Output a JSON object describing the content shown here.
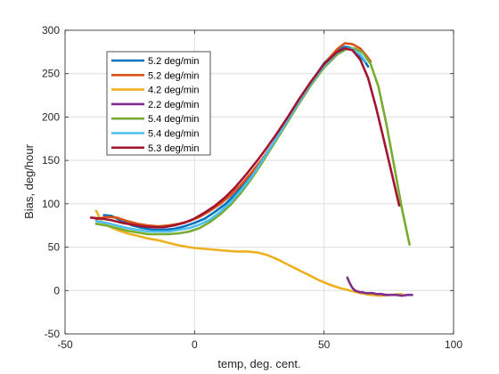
{
  "chart_data": {
    "type": "line",
    "xlabel": "temp, deg. cent.",
    "ylabel": "Bias, deg/hour",
    "xlim": [
      -50,
      100
    ],
    "ylim": [
      -50,
      300
    ],
    "xticks": [
      -50,
      0,
      50,
      100
    ],
    "yticks": [
      -50,
      0,
      50,
      100,
      150,
      200,
      250,
      300
    ],
    "grid": true,
    "legend_position": "top-left",
    "series": [
      {
        "name": "5.2 deg/min",
        "color": "#0072BD",
        "x": [
          -35,
          -32,
          -28,
          -24,
          -20,
          -16,
          -12,
          -8,
          -4,
          0,
          4,
          8,
          12,
          16,
          20,
          25,
          30,
          35,
          40,
          45,
          50,
          55,
          58,
          60,
          62,
          64,
          66,
          67
        ],
        "y": [
          87,
          86,
          80,
          75,
          72,
          70,
          70,
          71,
          74,
          78,
          83,
          91,
          100,
          112,
          126,
          145,
          167,
          191,
          216,
          240,
          262,
          277,
          281,
          280,
          276,
          270,
          263,
          258
        ]
      },
      {
        "name": "5.2 deg/min",
        "color": "#D95319",
        "x": [
          -38,
          -34,
          -30,
          -26,
          -22,
          -18,
          -14,
          -10,
          -6,
          -2,
          2,
          6,
          10,
          14,
          18,
          22,
          26,
          30,
          35,
          40,
          45,
          50,
          55,
          58,
          61,
          64,
          66,
          68
        ],
        "y": [
          82,
          85,
          84,
          80,
          77,
          75,
          74,
          75,
          77,
          80,
          85,
          92,
          100,
          110,
          122,
          136,
          151,
          168,
          192,
          216,
          240,
          261,
          278,
          285,
          284,
          279,
          272,
          264
        ]
      },
      {
        "name": "4.2 deg/min",
        "color": "#EDB120",
        "x": [
          -38,
          -36,
          -33,
          -30,
          -26,
          -22,
          -18,
          -14,
          -10,
          -6,
          -2,
          0,
          4,
          8,
          12,
          16,
          20,
          24,
          28,
          32,
          36,
          40,
          44,
          48,
          52,
          56,
          60,
          64,
          68,
          72,
          76,
          80
        ],
        "y": [
          92,
          80,
          74,
          70,
          66,
          63,
          60,
          58,
          55,
          52,
          50,
          49,
          48,
          47,
          46,
          45,
          45,
          44,
          41,
          36,
          30,
          24,
          18,
          12,
          7,
          3,
          0,
          -3,
          -5,
          -6,
          -5,
          -4
        ]
      },
      {
        "name": "2.2 deg/min",
        "color": "#7E2F8E",
        "x": [
          59,
          60,
          61,
          62,
          63,
          64,
          65,
          66,
          67,
          68,
          69,
          70,
          72,
          74,
          76,
          78,
          80,
          82,
          84
        ],
        "y": [
          15,
          8,
          3,
          0,
          -1,
          -2,
          -2,
          -3,
          -3,
          -3,
          -3,
          -4,
          -4,
          -5,
          -5,
          -5,
          -6,
          -5,
          -5
        ]
      },
      {
        "name": "5.4 deg/min",
        "color": "#77AC30",
        "x": [
          -38,
          -34,
          -30,
          -26,
          -22,
          -18,
          -14,
          -10,
          -6,
          -2,
          2,
          6,
          10,
          14,
          18,
          22,
          26,
          30,
          35,
          40,
          45,
          50,
          55,
          59,
          62,
          65,
          68,
          71,
          74,
          77,
          80,
          83
        ],
        "y": [
          77,
          75,
          72,
          69,
          67,
          65,
          65,
          65,
          66,
          68,
          72,
          79,
          88,
          99,
          113,
          129,
          147,
          166,
          190,
          214,
          237,
          257,
          272,
          279,
          279,
          274,
          261,
          235,
          193,
          145,
          95,
          53
        ]
      },
      {
        "name": "5.4 deg/min",
        "color": "#4DBEEE",
        "x": [
          -38,
          -34,
          -30,
          -26,
          -22,
          -18,
          -14,
          -10,
          -6,
          -2,
          2,
          6,
          10,
          14,
          18,
          22,
          26,
          30,
          35,
          40,
          45,
          50,
          55,
          58,
          61,
          64,
          66
        ],
        "y": [
          80,
          78,
          75,
          72,
          70,
          68,
          68,
          68,
          70,
          72,
          76,
          82,
          91,
          102,
          116,
          131,
          149,
          168,
          192,
          216,
          239,
          259,
          274,
          279,
          278,
          272,
          264
        ]
      },
      {
        "name": "5.3 deg/min",
        "color": "#A2142F",
        "x": [
          -40,
          -36,
          -32,
          -28,
          -24,
          -20,
          -16,
          -12,
          -8,
          -4,
          0,
          4,
          8,
          12,
          16,
          20,
          24,
          28,
          32,
          36,
          40,
          45,
          50,
          55,
          58,
          61,
          64,
          67,
          70,
          73,
          76,
          79
        ],
        "y": [
          84,
          83,
          81,
          78,
          76,
          74,
          73,
          73,
          75,
          78,
          83,
          90,
          98,
          108,
          120,
          134,
          149,
          165,
          182,
          200,
          219,
          241,
          261,
          275,
          279,
          277,
          266,
          245,
          212,
          175,
          137,
          98
        ]
      }
    ]
  }
}
